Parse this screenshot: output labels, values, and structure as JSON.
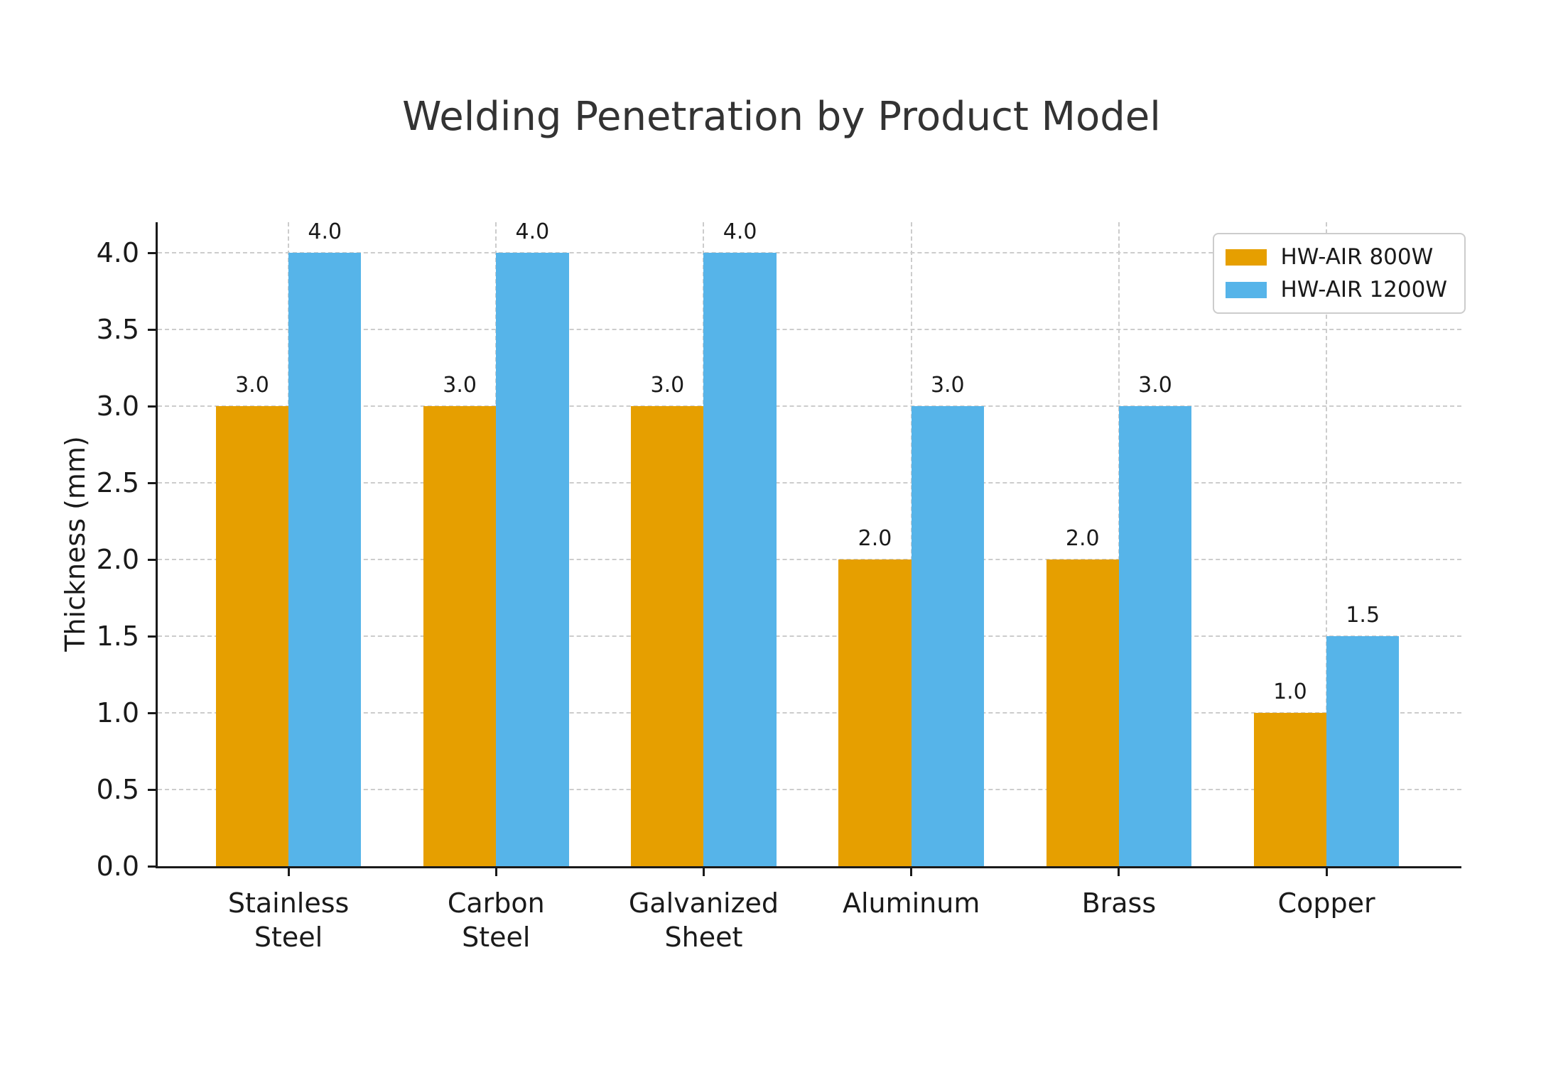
{
  "chart_data": {
    "type": "bar",
    "title": "Welding Penetration by Product Model",
    "xlabel": "",
    "ylabel": "Thickness (mm)",
    "categories": [
      "Stainless\nSteel",
      "Carbon\nSteel",
      "Galvanized\nSheet",
      "Aluminum",
      "Brass",
      "Copper"
    ],
    "series": [
      {
        "name": "HW-AIR 800W",
        "color": "#E69F00",
        "values": [
          3.0,
          3.0,
          3.0,
          2.0,
          2.0,
          1.0
        ]
      },
      {
        "name": "HW-AIR 1200W",
        "color": "#56B4E9",
        "values": [
          4.0,
          4.0,
          4.0,
          3.0,
          3.0,
          1.5
        ]
      }
    ],
    "bar_value_labels": true,
    "value_label_decimals": 1,
    "y_ticks": [
      0.0,
      0.5,
      1.0,
      1.5,
      2.0,
      2.5,
      3.0,
      3.5,
      4.0
    ],
    "ylim": [
      0,
      4.2
    ],
    "xlim": [
      -0.63,
      5.65
    ],
    "bar_width": 0.35,
    "grid": {
      "style": "dashed",
      "color": "#cccccc",
      "horizontal": true,
      "vertical": true
    },
    "legend": {
      "position": "upper right",
      "entries": [
        "HW-AIR 800W",
        "HW-AIR 1200W"
      ]
    },
    "colors": {
      "axis": "#1a1a1a",
      "text": "#1a1a1a",
      "title": "#333333",
      "background": "#ffffff"
    }
  }
}
